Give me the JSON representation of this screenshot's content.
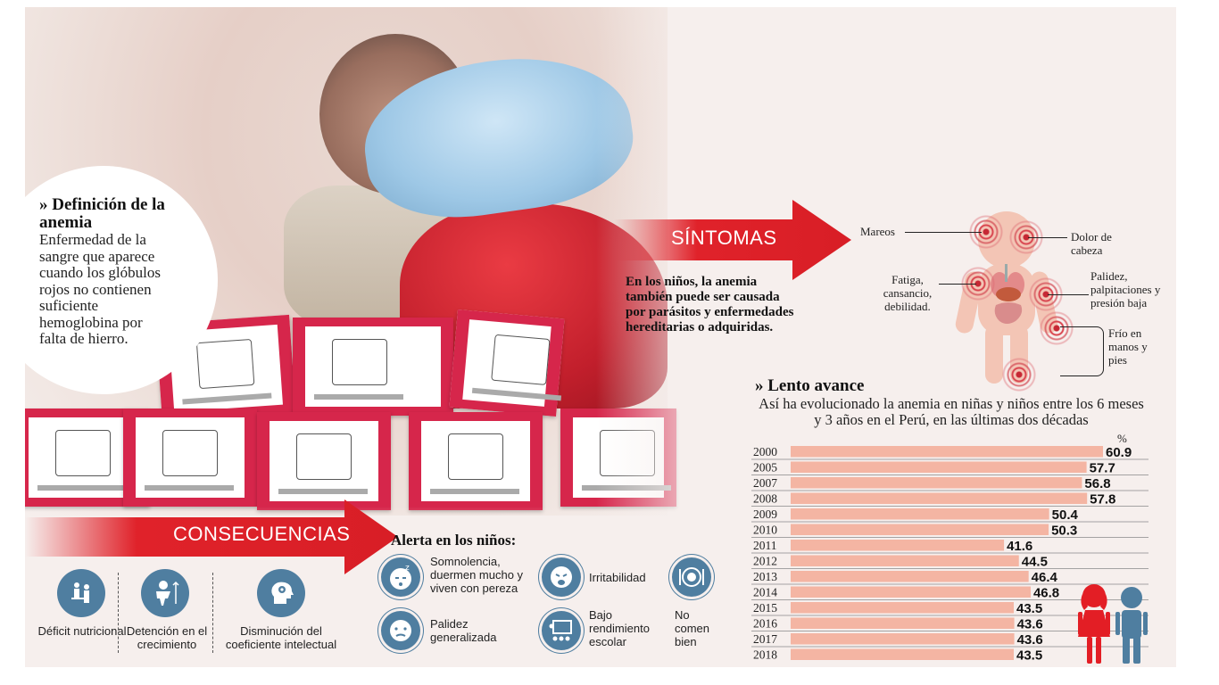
{
  "definition": {
    "title": "» Definición de la anemia",
    "body": "Enfermedad de la sangre que aparece cuando los glóbulos rojos no contienen suficiente hemoglobina por falta de hierro."
  },
  "sintomas": {
    "label": "SÍNTOMAS",
    "cause_text": "En los niños, la anemia también puede ser causada por parásitos y enfermedades hereditarias o adquiridas.",
    "items": {
      "mareos": "Mareos",
      "dolor": "Dolor de cabeza",
      "fatiga": "Fatiga, cansancio, debilidad.",
      "palidez": "Palidez, palpitaciones y presión baja",
      "frio": "Frío en manos y pies"
    }
  },
  "consecuencias": {
    "label": "CONSECUENCIAS",
    "items": [
      {
        "label": "Déficit nutricional",
        "icon": "nutrition-deficit-icon"
      },
      {
        "label": "Detención en el crecimiento",
        "icon": "growth-icon"
      },
      {
        "label": "Disminución del coeficiente intelectual",
        "icon": "head-gear-icon"
      }
    ]
  },
  "alerta": {
    "title": "Alerta en los niños:",
    "items": [
      {
        "label": "Somnolencia, duermen mucho y viven con pereza",
        "icon": "sleepy-face-icon"
      },
      {
        "label": "Irritabilidad",
        "icon": "crying-face-icon"
      },
      {
        "label": "Palidez generalizada",
        "icon": "pale-face-icon"
      },
      {
        "label": "Bajo rendimiento escolar",
        "icon": "classroom-icon"
      },
      {
        "label": "No comen bien",
        "icon": "plate-icon"
      }
    ]
  },
  "chart_data": {
    "type": "bar",
    "title": "» Lento avance",
    "subtitle": "Así ha evolucionado la anemia en niñas y niños entre los 6 meses y 3 años en el Perú, en las últimas dos décadas",
    "unit": "%",
    "categories": [
      "2000",
      "2005",
      "2007",
      "2008",
      "2009",
      "2010",
      "2011",
      "2012",
      "2013",
      "2014",
      "2015",
      "2016",
      "2017",
      "2018"
    ],
    "values": [
      60.9,
      57.7,
      56.8,
      57.8,
      50.4,
      50.3,
      41.6,
      44.5,
      46.4,
      46.8,
      43.5,
      43.6,
      43.6,
      43.5
    ],
    "value_labels": [
      "60.9",
      "57.7",
      "56.8",
      "57.8",
      "50.4",
      "50.3",
      "41.6",
      "44.5",
      "46.4",
      "46.8",
      "43.5",
      "43.6",
      "43.6",
      "43.5"
    ],
    "orientation": "horizontal",
    "xlim": [
      0,
      60.9
    ],
    "colors": {
      "bar": "#f4b5a3",
      "divider": "#888888"
    }
  },
  "colors": {
    "arrow_red": "#e0222a",
    "icon_blue": "#4f7ea0",
    "kid_red": "#e31e25",
    "kid_blue": "#4f7ea0"
  }
}
